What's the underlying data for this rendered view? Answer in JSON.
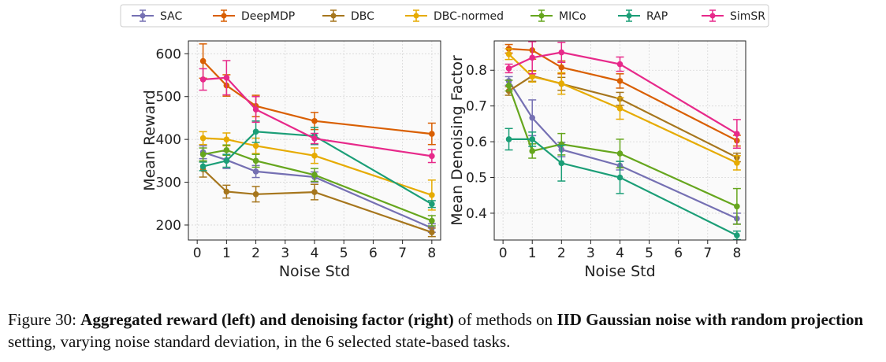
{
  "chart_data": [
    {
      "type": "line",
      "title": "",
      "xlabel": "Noise Std",
      "ylabel": "Mean Reward",
      "x": [
        0.2,
        1,
        2,
        4,
        8
      ],
      "xticks": [
        0,
        1,
        2,
        3,
        4,
        5,
        6,
        7,
        8
      ],
      "xlim": [
        -0.3,
        8.3
      ],
      "yticks": [
        200,
        300,
        400,
        500,
        600
      ],
      "ylim": [
        165,
        630
      ],
      "grid": true,
      "series": [
        {
          "name": "SAC",
          "values": [
            370,
            352,
            325,
            312,
            193
          ],
          "errors": [
            15,
            20,
            14,
            12,
            10
          ]
        },
        {
          "name": "DeepMDP",
          "values": [
            583,
            526,
            478,
            443,
            413
          ],
          "errors": [
            40,
            25,
            25,
            20,
            25
          ]
        },
        {
          "name": "DBC",
          "values": [
            330,
            278,
            272,
            277,
            183
          ],
          "errors": [
            18,
            15,
            18,
            18,
            10
          ]
        },
        {
          "name": "DBC-normed",
          "values": [
            403,
            400,
            385,
            362,
            270
          ],
          "errors": [
            15,
            15,
            18,
            18,
            35
          ]
        },
        {
          "name": "MICo",
          "values": [
            365,
            375,
            350,
            317,
            210
          ],
          "errors": [
            15,
            12,
            15,
            15,
            12
          ]
        },
        {
          "name": "RAP",
          "values": [
            337,
            350,
            418,
            408,
            249
          ],
          "errors": [
            10,
            15,
            25,
            20,
            8
          ]
        },
        {
          "name": "SimSR",
          "values": [
            540,
            544,
            470,
            402,
            361
          ],
          "errors": [
            25,
            40,
            30,
            12,
            15
          ]
        }
      ]
    },
    {
      "type": "line",
      "title": "",
      "xlabel": "Noise Std",
      "ylabel": "Mean Denoising Factor",
      "x": [
        0.2,
        1,
        2,
        4,
        8
      ],
      "xticks": [
        0,
        1,
        2,
        3,
        4,
        5,
        6,
        7,
        8
      ],
      "xlim": [
        -0.3,
        8.3
      ],
      "yticks": [
        0.4,
        0.5,
        0.6,
        0.7,
        0.8
      ],
      "ylim": [
        0.325,
        0.882
      ],
      "grid": true,
      "series": [
        {
          "name": "SAC",
          "values": [
            0.77,
            0.667,
            0.578,
            0.533,
            0.385
          ],
          "errors": [
            0.012,
            0.05,
            0.02,
            0.012,
            0.015
          ]
        },
        {
          "name": "DeepMDP",
          "values": [
            0.86,
            0.856,
            0.808,
            0.77,
            0.603
          ],
          "errors": [
            0.012,
            0.025,
            0.018,
            0.02,
            0.015
          ]
        },
        {
          "name": "DBC",
          "values": [
            0.742,
            0.784,
            0.762,
            0.72,
            0.556
          ],
          "errors": [
            0.012,
            0.015,
            0.018,
            0.018,
            0.012
          ]
        },
        {
          "name": "DBC-normed",
          "values": [
            0.845,
            0.782,
            0.763,
            0.693,
            0.541
          ],
          "errors": [
            0.015,
            0.015,
            0.03,
            0.03,
            0.02
          ]
        },
        {
          "name": "MICo",
          "values": [
            0.757,
            0.574,
            0.593,
            0.567,
            0.419
          ],
          "errors": [
            0.015,
            0.02,
            0.03,
            0.04,
            0.05
          ]
        },
        {
          "name": "RAP",
          "values": [
            0.607,
            0.607,
            0.54,
            0.5,
            0.338
          ],
          "errors": [
            0.03,
            0.02,
            0.05,
            0.045,
            0.012
          ]
        },
        {
          "name": "SimSR",
          "values": [
            0.805,
            0.835,
            0.85,
            0.817,
            0.622
          ],
          "errors": [
            0.012,
            0.045,
            0.028,
            0.02,
            0.04
          ]
        }
      ]
    }
  ],
  "legend": {
    "placement": "top-center",
    "entries": [
      {
        "name": "SAC",
        "color": "#7570b3"
      },
      {
        "name": "DeepMDP",
        "color": "#d95f02"
      },
      {
        "name": "DBC",
        "color": "#a6761d"
      },
      {
        "name": "DBC-normed",
        "color": "#e6ab02"
      },
      {
        "name": "MICo",
        "color": "#66a61e"
      },
      {
        "name": "RAP",
        "color": "#1b9e77"
      },
      {
        "name": "SimSR",
        "color": "#e7298a"
      }
    ]
  },
  "caption": {
    "figure_label": "Figure 30:",
    "bold_1": "Aggregated reward (left) and denoising factor (right)",
    "text_1": " of methods on ",
    "bold_2": "IID Gaussian noise with random projection",
    "text_2": " setting, varying noise standard deviation, in the 6 selected state-based tasks."
  }
}
